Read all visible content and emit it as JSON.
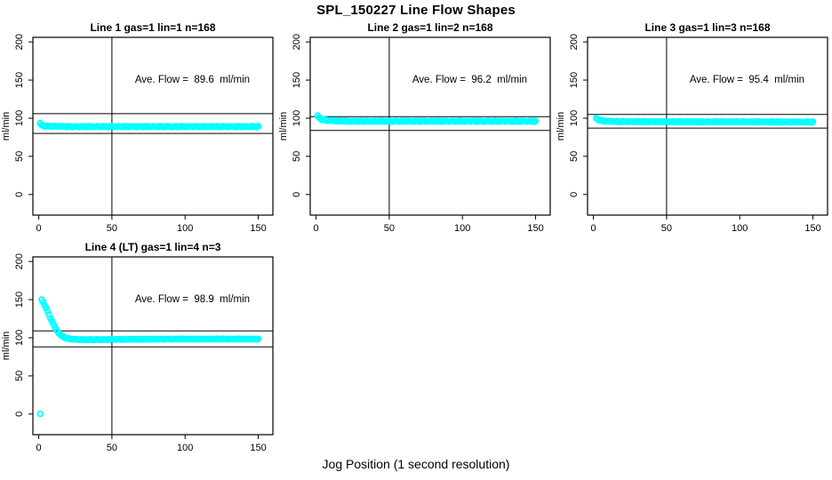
{
  "main_title": "SPL_150227  Line Flow Shapes",
  "x_axis_label": "Jog Position (1 second resolution)",
  "colors": {
    "data_point": "#00ffff",
    "reference_line": "#000000",
    "axis": "#000000",
    "background": "#ffffff"
  },
  "chart_data": [
    {
      "type": "scatter",
      "title": "Line 1 gas=1 lin=1 n=168",
      "annotation": "Ave. Flow =  89.6  ml/min",
      "ave_flow_ml_min": 89.6,
      "ylabel": "ml/min",
      "x_ticks": [
        0,
        50,
        100,
        150
      ],
      "y_ticks": [
        0,
        50,
        100,
        150,
        200
      ],
      "xlim": [
        -4,
        160
      ],
      "ylim": [
        -27,
        206
      ],
      "vline_x": 50,
      "hlines": [
        106,
        80
      ],
      "x_step": 1,
      "x_end": 150,
      "jitter": 0.6,
      "marker": "open-circle",
      "series_profile": [
        [
          1,
          93
        ],
        [
          2,
          91
        ],
        [
          3,
          90
        ],
        [
          6,
          89.5
        ],
        [
          20,
          89
        ],
        [
          150,
          89
        ]
      ]
    },
    {
      "type": "scatter",
      "title": "Line 2 gas=1 lin=2 n=168",
      "annotation": "Ave. Flow =  96.2  ml/min",
      "ave_flow_ml_min": 96.2,
      "ylabel": "ml/min",
      "x_ticks": [
        0,
        50,
        100,
        150
      ],
      "y_ticks": [
        0,
        50,
        100,
        150,
        200
      ],
      "xlim": [
        -4,
        160
      ],
      "ylim": [
        -27,
        206
      ],
      "vline_x": 50,
      "hlines": [
        102,
        84
      ],
      "x_step": 1,
      "x_end": 150,
      "jitter": 0.6,
      "marker": "open-circle",
      "series_profile": [
        [
          1,
          103
        ],
        [
          2,
          101
        ],
        [
          3,
          99.5
        ],
        [
          4,
          98.5
        ],
        [
          6,
          97.5
        ],
        [
          9,
          97
        ],
        [
          14,
          96.5
        ],
        [
          25,
          96
        ],
        [
          150,
          96
        ]
      ]
    },
    {
      "type": "scatter",
      "title": "Line 3 gas=1 lin=3 n=168",
      "annotation": "Ave. Flow =  95.4  ml/min",
      "ave_flow_ml_min": 95.4,
      "ylabel": "ml/min",
      "x_ticks": [
        0,
        50,
        100,
        150
      ],
      "y_ticks": [
        0,
        50,
        100,
        150,
        200
      ],
      "xlim": [
        -4,
        160
      ],
      "ylim": [
        -27,
        206
      ],
      "vline_x": 50,
      "hlines": [
        105,
        87
      ],
      "x_step": 1,
      "x_end": 150,
      "jitter": 0.6,
      "marker": "open-circle",
      "series_profile": [
        [
          2,
          100
        ],
        [
          3,
          98.5
        ],
        [
          4,
          97.5
        ],
        [
          6,
          96.5
        ],
        [
          10,
          96
        ],
        [
          18,
          95.5
        ],
        [
          150,
          95
        ]
      ]
    },
    {
      "type": "scatter",
      "title": "Line 4 (LT) gas=1 lin=4 n=3",
      "annotation": "Ave. Flow =  98.9  ml/min",
      "ave_flow_ml_min": 98.9,
      "ylabel": "ml/min",
      "x_ticks": [
        0,
        50,
        100,
        150
      ],
      "y_ticks": [
        0,
        50,
        100,
        150,
        200
      ],
      "xlim": [
        -4,
        160
      ],
      "ylim": [
        -27,
        206
      ],
      "vline_x": 50,
      "hlines": [
        109,
        88
      ],
      "x_step": 1,
      "x_end": 150,
      "jitter": 0.4,
      "marker": "open-circle",
      "series_profile": [
        [
          1,
          0
        ],
        [
          2,
          150
        ],
        [
          3,
          147
        ],
        [
          4,
          143
        ],
        [
          5,
          139
        ],
        [
          6,
          135
        ],
        [
          7,
          130
        ],
        [
          8,
          126
        ],
        [
          9,
          122
        ],
        [
          10,
          118
        ],
        [
          11,
          114
        ],
        [
          12,
          111
        ],
        [
          13,
          108
        ],
        [
          14,
          105.5
        ],
        [
          15,
          103.5
        ],
        [
          16,
          102
        ],
        [
          17,
          101
        ],
        [
          18,
          100
        ],
        [
          20,
          99
        ],
        [
          22,
          98.4
        ],
        [
          25,
          98
        ],
        [
          30,
          97.6
        ],
        [
          40,
          97.6
        ],
        [
          60,
          98
        ],
        [
          90,
          98.3
        ],
        [
          150,
          98.3
        ]
      ]
    }
  ]
}
